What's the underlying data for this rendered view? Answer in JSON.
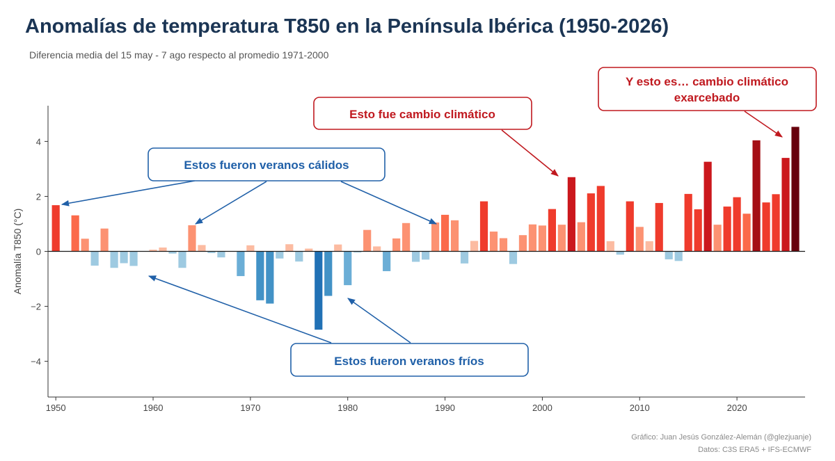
{
  "header": {
    "title": "Anomalías de temperatura T850 en la Península Ibérica (1950-2026)",
    "subtitle": "Diferencia media del 15 may - 7 ago respecto al promedio 1971-2000"
  },
  "footer": {
    "credit": "Gráfico: Juan Jesús González-Alemán (@glezjuanje)",
    "data_source": "Datos: C3S ERA5 + IFS-ECMWF"
  },
  "colors": {
    "positive_scale": [
      "#fcbba1",
      "#fc9272",
      "#fb6a4a",
      "#ef3b2c",
      "#cb181d",
      "#a50f15",
      "#67000d"
    ],
    "negative_scale": [
      "#9ecae1",
      "#6baed6",
      "#4292c6",
      "#2171b5"
    ],
    "warm_annotation": "#c0191f",
    "cool_annotation": "#2060a8",
    "axis": "#333333"
  },
  "annotations": {
    "warm_summers": "Estos fueron veranos cálidos",
    "cold_summers": "Estos fueron veranos fríos",
    "climate_change": "Esto fue cambio climático",
    "exacerbated_line1": "Y esto es… cambio climático",
    "exacerbated_line2": "exarcebado"
  },
  "chart_data": {
    "type": "bar",
    "title": "Anomalías de temperatura T850 en la Península Ibérica (1950-2026)",
    "subtitle": "Diferencia media del 15 may - 7 ago respecto al promedio 1971-2000",
    "xlabel": "",
    "ylabel": "Anomalía T850 (°C)",
    "xlim": [
      1949.2,
      2027.0
    ],
    "ylim": [
      -5.3,
      5.3
    ],
    "x_ticks": [
      1950,
      1960,
      1970,
      1980,
      1990,
      2000,
      2010,
      2020
    ],
    "y_ticks": [
      -4,
      -2,
      0,
      2,
      4
    ],
    "y_tick_labels": [
      "−4",
      "−2",
      "0",
      "2",
      "4"
    ],
    "grid": false,
    "x": [
      1950,
      1951,
      1952,
      1953,
      1954,
      1955,
      1956,
      1957,
      1958,
      1959,
      1960,
      1961,
      1962,
      1963,
      1964,
      1965,
      1966,
      1967,
      1968,
      1969,
      1970,
      1971,
      1972,
      1973,
      1974,
      1975,
      1976,
      1977,
      1978,
      1979,
      1980,
      1981,
      1982,
      1983,
      1984,
      1985,
      1986,
      1987,
      1988,
      1989,
      1990,
      1991,
      1992,
      1993,
      1994,
      1995,
      1996,
      1997,
      1998,
      1999,
      2000,
      2001,
      2002,
      2003,
      2004,
      2005,
      2006,
      2007,
      2008,
      2009,
      2010,
      2011,
      2012,
      2013,
      2014,
      2015,
      2016,
      2017,
      2018,
      2019,
      2020,
      2021,
      2022,
      2023,
      2024,
      2025,
      2026
    ],
    "values": [
      1.68,
      0.0,
      1.31,
      0.46,
      -0.52,
      0.83,
      -0.6,
      -0.43,
      -0.53,
      0.0,
      0.06,
      0.14,
      -0.08,
      -0.6,
      0.95,
      0.23,
      -0.06,
      -0.22,
      0.0,
      -0.9,
      0.22,
      -1.78,
      -1.9,
      -0.26,
      0.26,
      -0.37,
      0.1,
      -2.85,
      -1.62,
      0.25,
      -1.23,
      -0.04,
      0.78,
      0.18,
      -0.72,
      0.47,
      1.03,
      -0.38,
      -0.3,
      1.05,
      1.33,
      1.13,
      -0.44,
      0.38,
      1.82,
      0.72,
      0.48,
      -0.46,
      0.59,
      0.98,
      0.94,
      1.54,
      0.97,
      2.7,
      1.06,
      2.11,
      2.38,
      0.37,
      -0.12,
      1.82,
      0.89,
      0.37,
      1.76,
      -0.29,
      -0.35,
      2.09,
      1.53,
      3.26,
      0.97,
      1.63,
      1.97,
      1.37,
      4.04,
      1.78,
      2.08,
      3.4,
      4.53
    ]
  }
}
